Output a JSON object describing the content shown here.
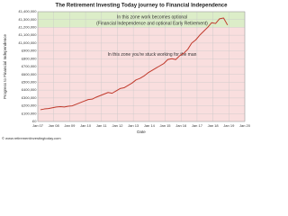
{
  "chart_data": {
    "type": "line",
    "title": "The Retirement Investing Today journey to Financial Independence",
    "ylabel": "Progress to Financial Independence",
    "xlabel": "Date",
    "footer": "© www.retirementinvestingtoday.com",
    "color": "#c0392b",
    "grid": true,
    "x": [
      "2007-03",
      "2007-06",
      "2007-09",
      "2007-12",
      "2008-03",
      "2008-06",
      "2008-09",
      "2008-12",
      "2009-03",
      "2009-06",
      "2009-09",
      "2009-12",
      "2010-03",
      "2010-06",
      "2010-09",
      "2010-12",
      "2011-03",
      "2011-06",
      "2011-09",
      "2011-12",
      "2012-03",
      "2012-06",
      "2012-09",
      "2012-12",
      "2013-03",
      "2013-06",
      "2013-09",
      "2013-12",
      "2014-03",
      "2014-06",
      "2014-09",
      "2014-12",
      "2015-03",
      "2015-06",
      "2015-09",
      "2015-12",
      "2016-03",
      "2016-06",
      "2016-09",
      "2016-12",
      "2017-03",
      "2017-06",
      "2017-09",
      "2017-12",
      "2018-03",
      "2018-06",
      "2018-09",
      "2018-12"
    ],
    "values": [
      150000,
      160000,
      165000,
      175000,
      185000,
      190000,
      185000,
      195000,
      200000,
      220000,
      240000,
      260000,
      280000,
      285000,
      310000,
      330000,
      350000,
      370000,
      360000,
      390000,
      420000,
      430000,
      460000,
      490000,
      530000,
      550000,
      580000,
      620000,
      650000,
      680000,
      710000,
      740000,
      790000,
      800000,
      790000,
      840000,
      870000,
      920000,
      1000000,
      1040000,
      1100000,
      1150000,
      1200000,
      1260000,
      1250000,
      1310000,
      1320000,
      1230000
    ],
    "zones": [
      {
        "lines": [
          "In this zone work becomes optional",
          "(Financial Independence and optional Early Retirement)"
        ],
        "from": 1200000,
        "to": 1400000,
        "color": "#dcedc8"
      },
      {
        "lines": [
          "In this zone you're stuck working for the man"
        ],
        "from": 0,
        "to": 1200000,
        "color": "#f9dede"
      }
    ],
    "xlim": [
      "2007-01",
      "2020-01"
    ],
    "xticks": [
      {
        "value": "2007-01",
        "label": "Jan 07"
      },
      {
        "value": "2008-01",
        "label": "Jan 08"
      },
      {
        "value": "2009-01",
        "label": "Jan 09"
      },
      {
        "value": "2010-01",
        "label": "Jan 10"
      },
      {
        "value": "2011-01",
        "label": "Jan 11"
      },
      {
        "value": "2012-01",
        "label": "Jan 12"
      },
      {
        "value": "2013-01",
        "label": "Jan 13"
      },
      {
        "value": "2014-01",
        "label": "Jan 14"
      },
      {
        "value": "2015-01",
        "label": "Jan 15"
      },
      {
        "value": "2016-01",
        "label": "Jan 16"
      },
      {
        "value": "2017-01",
        "label": "Jan 17"
      },
      {
        "value": "2018-01",
        "label": "Jan 18"
      },
      {
        "value": "2019-01",
        "label": "Jan 19"
      },
      {
        "value": "2020-01",
        "label": "Jan 20"
      }
    ],
    "ylim": [
      0,
      1400000
    ],
    "yticks": [
      {
        "value": 0,
        "label": "£0"
      },
      {
        "value": 100000,
        "label": "£100,000"
      },
      {
        "value": 200000,
        "label": "£200,000"
      },
      {
        "value": 300000,
        "label": "£300,000"
      },
      {
        "value": 400000,
        "label": "£400,000"
      },
      {
        "value": 500000,
        "label": "£500,000"
      },
      {
        "value": 600000,
        "label": "£600,000"
      },
      {
        "value": 700000,
        "label": "£700,000"
      },
      {
        "value": 800000,
        "label": "£800,000"
      },
      {
        "value": 900000,
        "label": "£900,000"
      },
      {
        "value": 1000000,
        "label": "£1,000,000"
      },
      {
        "value": 1100000,
        "label": "£1,100,000"
      },
      {
        "value": 1200000,
        "label": "£1,200,000"
      },
      {
        "value": 1300000,
        "label": "£1,300,000"
      },
      {
        "value": 1400000,
        "label": "£1,400,000"
      }
    ]
  }
}
